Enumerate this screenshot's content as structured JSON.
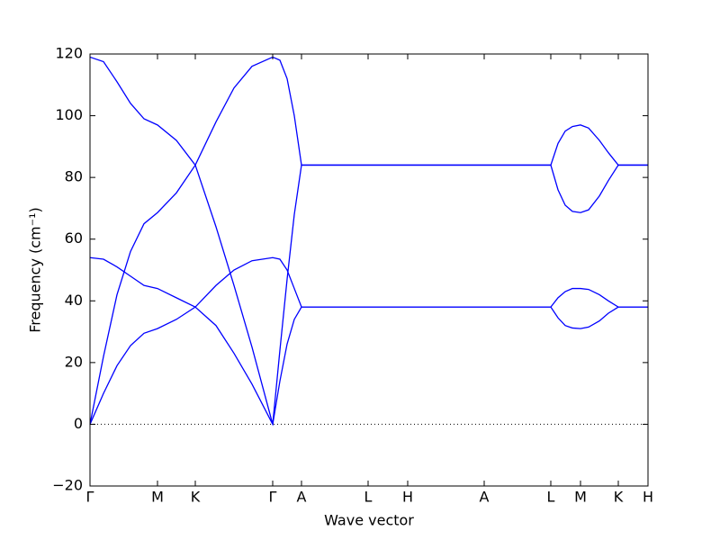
{
  "chart_data": {
    "type": "line",
    "x_label": "Wave vector",
    "y_label": "Frequency (cm⁻¹)",
    "xlim": [
      0,
      620
    ],
    "xticks": [
      {
        "value": 0,
        "label": "Γ"
      },
      {
        "value": 75,
        "label": "M"
      },
      {
        "value": 117,
        "label": "K"
      },
      {
        "value": 203,
        "label": "Γ"
      },
      {
        "value": 235,
        "label": "A"
      },
      {
        "value": 309,
        "label": "L"
      },
      {
        "value": 353,
        "label": "H"
      },
      {
        "value": 438,
        "label": "A"
      },
      {
        "value": 512,
        "label": "L"
      },
      {
        "value": 545,
        "label": "M"
      },
      {
        "value": 587,
        "label": "K"
      },
      {
        "value": 620,
        "label": "H"
      }
    ],
    "ylim": [
      -20,
      120
    ],
    "yticks": [
      {
        "value": -20,
        "label": "−20"
      },
      0,
      20,
      40,
      60,
      80,
      100,
      120
    ],
    "reference_line": 0,
    "x": [
      0,
      15,
      30,
      45,
      60,
      75,
      96,
      117,
      140,
      160,
      180,
      203,
      211,
      219,
      227,
      235,
      309,
      353,
      438,
      512,
      520,
      528,
      536,
      545,
      554,
      566,
      576,
      587,
      620
    ],
    "series": [
      {
        "color": "#0000ff",
        "values": [
          119,
          117.5,
          111,
          104,
          99,
          97,
          92,
          84,
          64,
          45,
          25,
          0,
          24,
          47,
          68,
          84,
          84,
          84,
          84,
          84,
          91,
          95,
          96.5,
          97,
          96,
          92,
          88,
          84,
          84
        ]
      },
      {
        "color": "#0000ff",
        "values": [
          0,
          22,
          42,
          56,
          65,
          68.6,
          75,
          84,
          98,
          109,
          116,
          119,
          118,
          112,
          100,
          84,
          84,
          84,
          84,
          84,
          76,
          71,
          69,
          68.6,
          69.5,
          74,
          79,
          84,
          84
        ]
      },
      {
        "color": "#0000ff",
        "values": [
          54,
          53.5,
          51,
          48,
          45,
          44,
          41,
          38,
          32,
          23,
          13,
          0,
          14,
          26,
          34,
          38,
          38,
          38,
          38,
          38,
          41,
          43,
          44,
          44,
          43.7,
          42,
          40,
          38,
          38
        ]
      },
      {
        "color": "#0000ff",
        "values": [
          0,
          10,
          19,
          25.5,
          29.5,
          31,
          34,
          38,
          45,
          50,
          53,
          54,
          53.5,
          50,
          44,
          38,
          38,
          38,
          38,
          38,
          34.5,
          32,
          31.2,
          31,
          31.5,
          33.5,
          36,
          38,
          38
        ]
      }
    ]
  }
}
